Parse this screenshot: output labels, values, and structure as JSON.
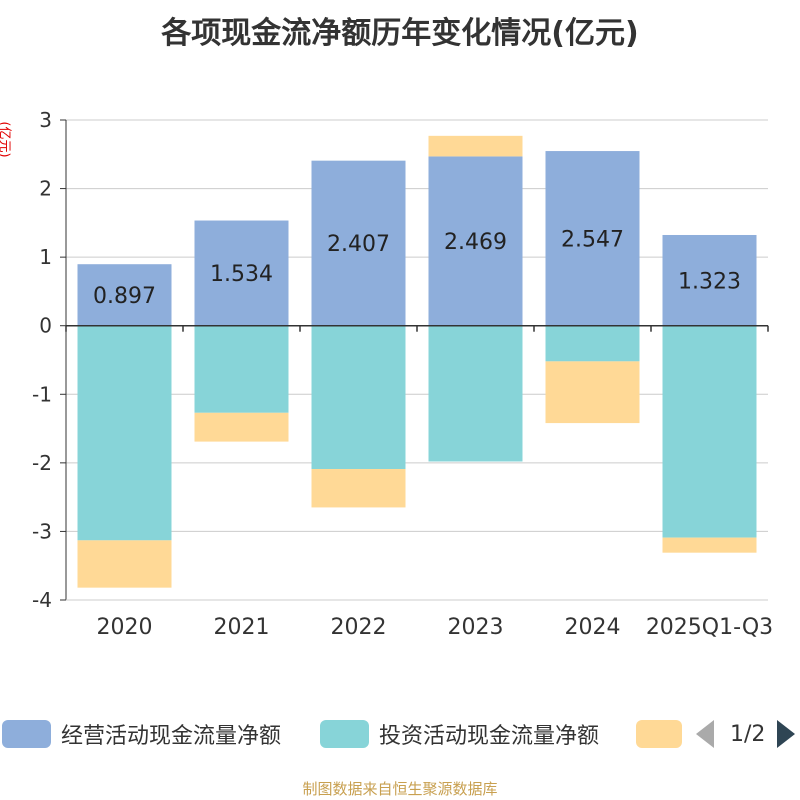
{
  "chart_data": {
    "type": "bar",
    "stacked": true,
    "title": "各项现金流净额历年变化情况(亿元)",
    "ylabel": "(亿元)",
    "ylim": [
      -4,
      3
    ],
    "yticks": [
      3,
      2,
      1,
      0,
      -1,
      -2,
      -3,
      -4
    ],
    "categories": [
      "2020",
      "2021",
      "2022",
      "2023",
      "2024",
      "2025Q1-Q3"
    ],
    "series": [
      {
        "name": "经营活动现金流量净额",
        "color": "#8eaedb",
        "values": [
          0.897,
          1.534,
          2.407,
          2.469,
          2.547,
          1.323
        ],
        "labels": [
          "0.897",
          "1.534",
          "2.407",
          "2.469",
          "2.547",
          "1.323"
        ]
      },
      {
        "name": "投资活动现金流量净额",
        "color": "#87d4d8",
        "values": [
          -3.13,
          -1.27,
          -2.09,
          -1.98,
          -0.52,
          -3.09
        ]
      },
      {
        "name": "",
        "color": "#ffd996",
        "values": [
          -0.69,
          -0.42,
          -0.56,
          0.3,
          -0.9,
          -0.22
        ]
      }
    ],
    "legend": {
      "position": "bottom",
      "page": "1/2"
    },
    "grid": true
  },
  "footer": {
    "source": "制图数据来自恒生聚源数据库"
  }
}
